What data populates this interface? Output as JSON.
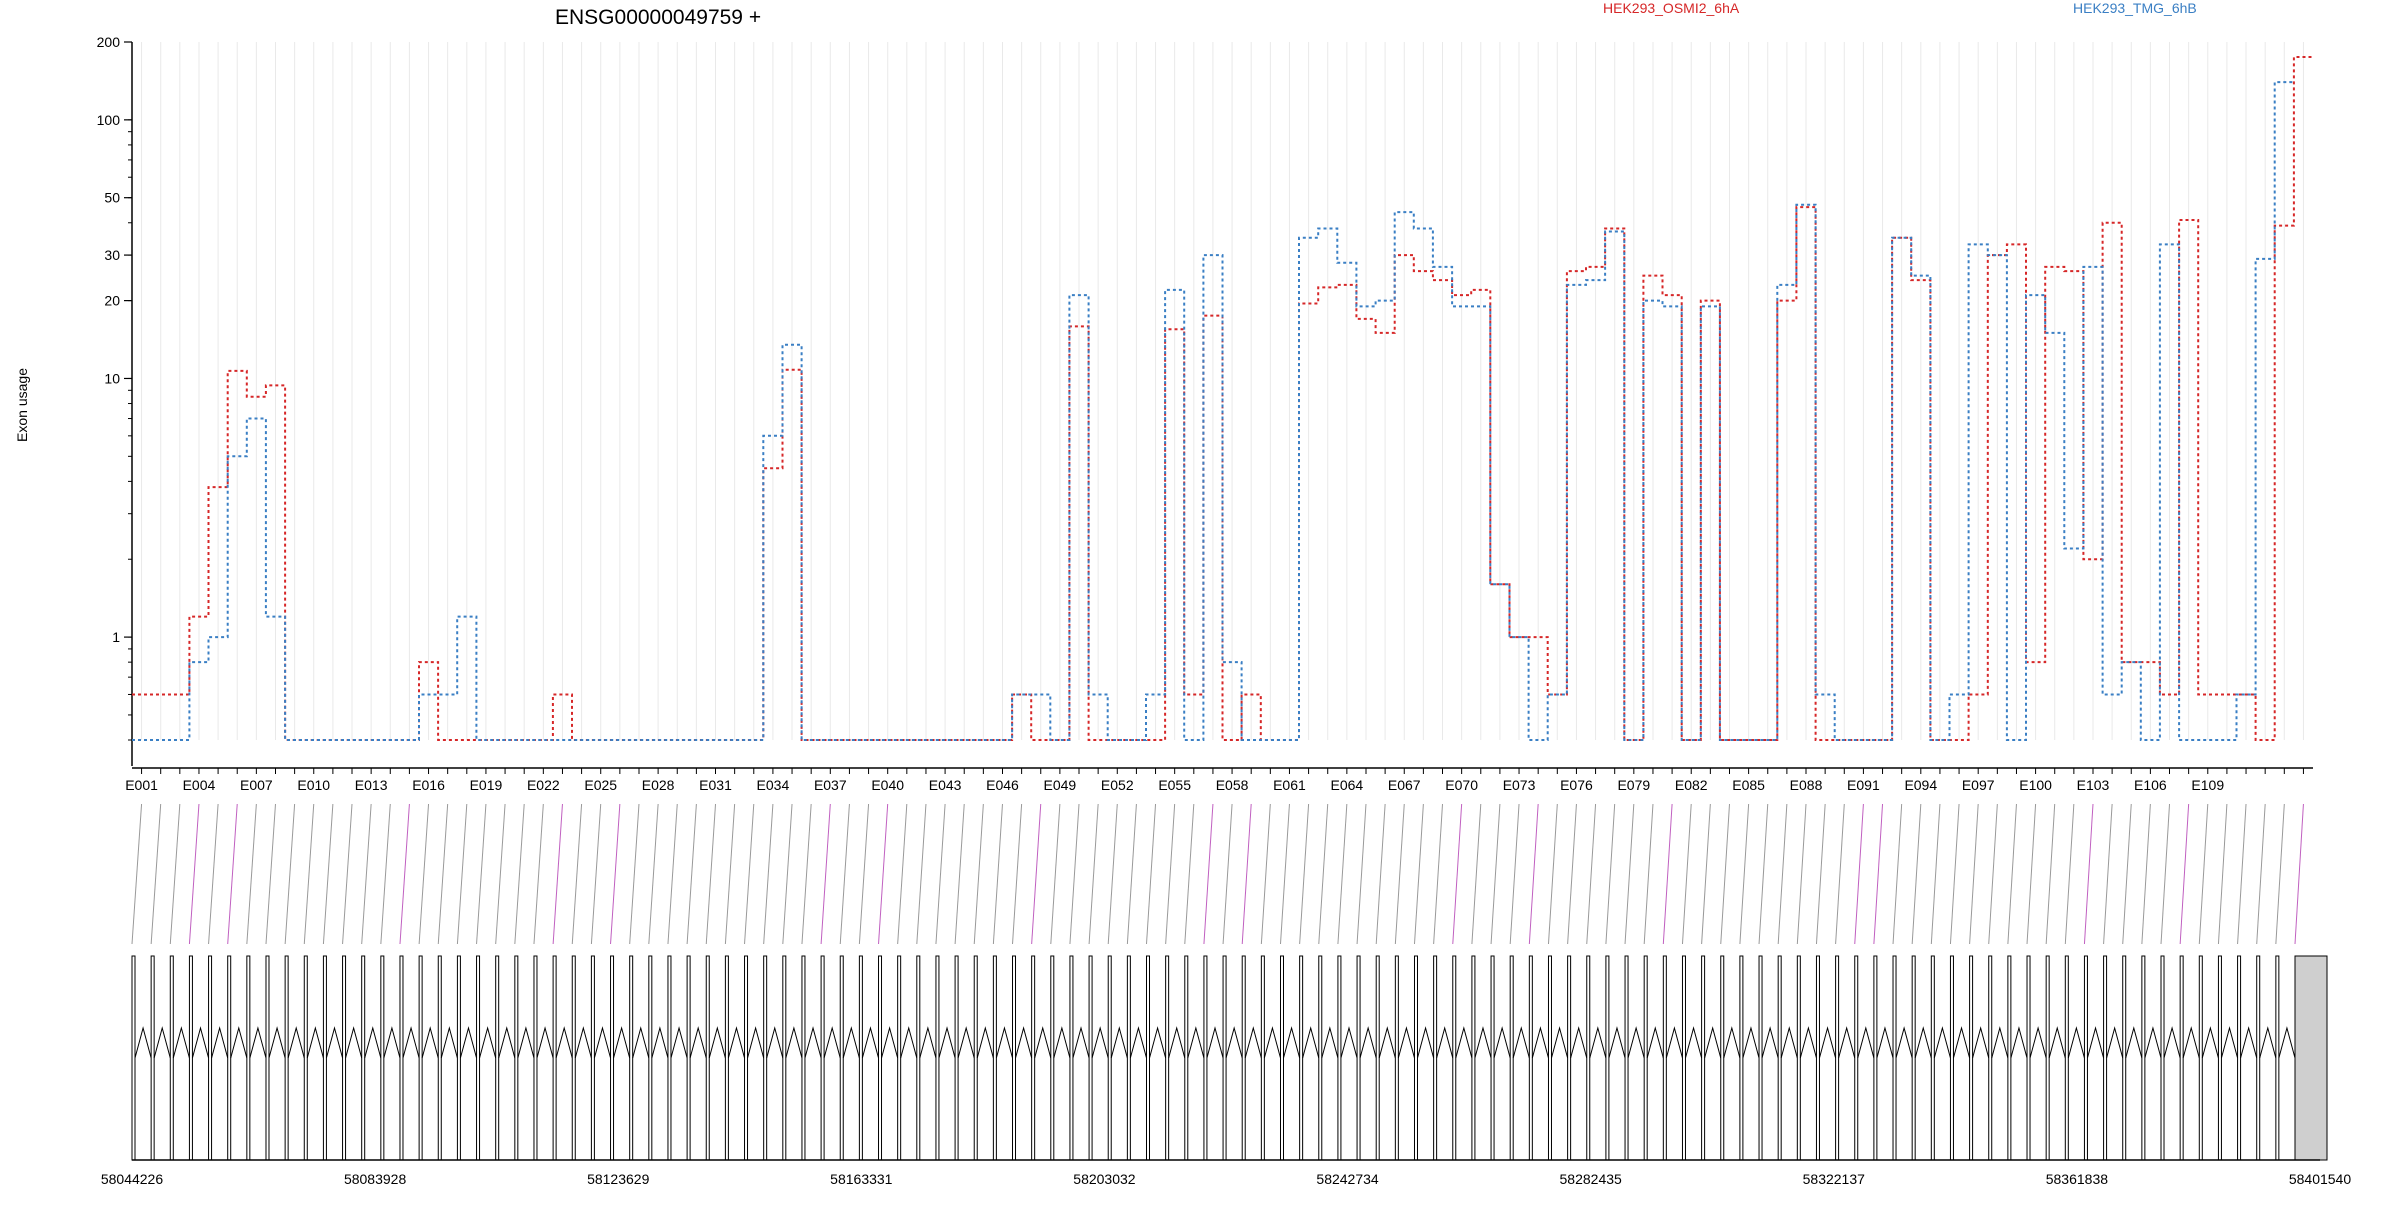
{
  "chart_data": {
    "type": "line",
    "title": "ENSG00000049759 +",
    "ylabel": "Exon usage",
    "yscale": "log",
    "ylim": [
      0.4,
      200
    ],
    "yticks": [
      1,
      10,
      20,
      30,
      50,
      100,
      200
    ],
    "x_tick_labels": [
      "E001",
      "E004",
      "E007",
      "E010",
      "E013",
      "E016",
      "E019",
      "E022",
      "E025",
      "E028",
      "E031",
      "E034",
      "E037",
      "E040",
      "E043",
      "E046",
      "E049",
      "E052",
      "E055",
      "E058",
      "E061",
      "E064",
      "E067",
      "E070",
      "E073",
      "E076",
      "E079",
      "E082",
      "E085",
      "E088",
      "E091",
      "E094",
      "E097",
      "E100",
      "E103",
      "E106",
      "E109"
    ],
    "series": [
      {
        "name": "HEK293_OSMI2_6hA",
        "color": "#d62728",
        "values": [
          0.6,
          0.6,
          0.6,
          1.2,
          3.8,
          10.7,
          8.5,
          9.4,
          0.4,
          0.4,
          0.4,
          0.4,
          0.4,
          0.4,
          0.4,
          0.8,
          0.4,
          0.4,
          0.4,
          0.4,
          0.4,
          0.4,
          0.6,
          0.4,
          0.4,
          0.4,
          0.4,
          0.4,
          0.4,
          0.4,
          0.4,
          0.4,
          0.4,
          4.5,
          10.8,
          0.4,
          0.4,
          0.4,
          0.4,
          0.4,
          0.4,
          0.4,
          0.4,
          0.4,
          0.4,
          0.4,
          0.6,
          0.4,
          0.4,
          15.9,
          0.4,
          0.4,
          0.4,
          0.4,
          15.5,
          0.6,
          17.5,
          0.4,
          0.6,
          0.4,
          0.4,
          19.5,
          22.5,
          23,
          17,
          15,
          30,
          26,
          24,
          21,
          22,
          1.6,
          1,
          1,
          0.6,
          26,
          27,
          38,
          0.4,
          25,
          21,
          0.4,
          20,
          0.4,
          0.4,
          0.4,
          20,
          46,
          0.4,
          0.4,
          0.4,
          0.4,
          35,
          24,
          0.4,
          0.4,
          0.6,
          30,
          33,
          0.8,
          27,
          26,
          2,
          40,
          0.8,
          0.8,
          0.6,
          41,
          0.6,
          0.6,
          0.6,
          0.4,
          39,
          175
        ]
      },
      {
        "name": "HEK293_TMG_6hB",
        "color": "#3a7fc4",
        "values": [
          0.4,
          0.4,
          0.4,
          0.8,
          1,
          5,
          7,
          1.2,
          0.4,
          0.4,
          0.4,
          0.4,
          0.4,
          0.4,
          0.4,
          0.6,
          0.6,
          1.2,
          0.4,
          0.4,
          0.4,
          0.4,
          0.4,
          0.4,
          0.4,
          0.4,
          0.4,
          0.4,
          0.4,
          0.4,
          0.4,
          0.4,
          0.4,
          6,
          13.5,
          0.4,
          0.4,
          0.4,
          0.4,
          0.4,
          0.4,
          0.4,
          0.4,
          0.4,
          0.4,
          0.4,
          0.6,
          0.6,
          0.4,
          21,
          0.6,
          0.4,
          0.4,
          0.6,
          22,
          0.4,
          30,
          0.8,
          0.4,
          0.4,
          0.4,
          35,
          38,
          28,
          19,
          20,
          44,
          38,
          27,
          19,
          19,
          1.6,
          1,
          0.4,
          0.6,
          23,
          24,
          37,
          0.4,
          20,
          19,
          0.4,
          19,
          0.4,
          0.4,
          0.4,
          23,
          47,
          0.6,
          0.4,
          0.4,
          0.4,
          35,
          25,
          0.4,
          0.6,
          33,
          30,
          0.4,
          21,
          15,
          2.2,
          27,
          0.6,
          0.8,
          0.4,
          33,
          0.4,
          0.4,
          0.4,
          0.6,
          29,
          140
        ]
      }
    ],
    "legend": "top-right",
    "grid": "vertical",
    "genomic_ticks": [
      "58044226",
      "58083928",
      "58123629",
      "58163331",
      "58203032",
      "58242734",
      "58282435",
      "58322137",
      "58361838",
      "58401540"
    ],
    "genomic_range": [
      58044226,
      58401540
    ]
  }
}
